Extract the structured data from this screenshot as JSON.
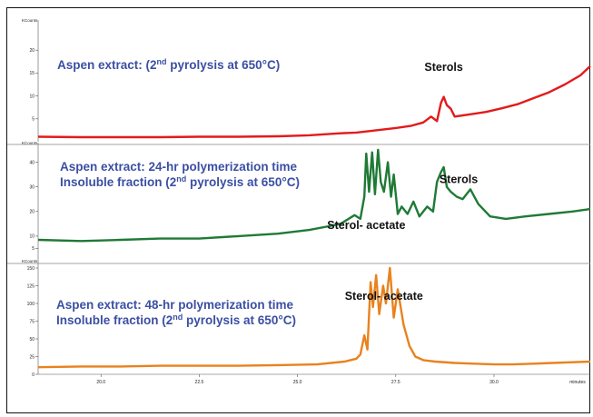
{
  "chart_data": [
    {
      "type": "line",
      "unit_label": "KCounts",
      "title_lines": [
        "Aspen extract: (2nd pyrolysis at 650°C)"
      ],
      "annotations": [
        {
          "text": "Sterols",
          "x": 28.72,
          "y": 15.5
        }
      ],
      "color": "#e31a1c",
      "ylim": [
        0,
        25
      ],
      "yticks": [
        5,
        10,
        15,
        20
      ],
      "x": [
        18.4,
        19.5,
        20.5,
        21.5,
        22.5,
        23.5,
        24.5,
        25.3,
        26.0,
        26.5,
        27.0,
        27.5,
        27.9,
        28.2,
        28.4,
        28.55,
        28.65,
        28.72,
        28.8,
        28.9,
        29.0,
        29.4,
        29.8,
        30.2,
        30.6,
        31.0,
        31.4,
        31.8,
        32.2,
        32.45
      ],
      "y": [
        1.1,
        1.0,
        1.0,
        1.0,
        1.1,
        1.1,
        1.2,
        1.4,
        1.8,
        2.0,
        2.5,
        3.0,
        3.5,
        4.2,
        5.5,
        4.5,
        8.5,
        9.8,
        8.0,
        7.2,
        5.5,
        6.0,
        6.5,
        7.3,
        8.2,
        9.5,
        10.8,
        12.5,
        14.5,
        16.5
      ]
    },
    {
      "type": "line",
      "unit_label": "KCounts",
      "title_lines": [
        "Aspen extract: 24-hr polymerization time",
        "Insoluble fraction (2nd pyrolysis at 650°C)"
      ],
      "annotations": [
        {
          "text": "Sterol- acetate",
          "x": 26.75,
          "y": 13
        },
        {
          "text": "Sterols",
          "x": 29.1,
          "y": 31.5
        }
      ],
      "color": "#1f7a35",
      "ylim": [
        0,
        45
      ],
      "yticks": [
        5,
        10,
        20,
        30,
        40
      ],
      "x": [
        18.4,
        19.5,
        20.5,
        21.5,
        22.5,
        23.5,
        24.5,
        25.3,
        25.8,
        26.1,
        26.3,
        26.45,
        26.6,
        26.7,
        26.75,
        26.82,
        26.9,
        26.97,
        27.05,
        27.12,
        27.2,
        27.3,
        27.38,
        27.45,
        27.55,
        27.65,
        27.8,
        27.95,
        28.1,
        28.3,
        28.45,
        28.55,
        28.65,
        28.72,
        28.8,
        28.9,
        29.05,
        29.2,
        29.4,
        29.6,
        29.9,
        30.3,
        30.8,
        31.4,
        32.0,
        32.45
      ],
      "y": [
        8.5,
        8.0,
        8.5,
        9.0,
        9.0,
        10.0,
        11.0,
        12.5,
        14.0,
        15.0,
        17.0,
        18.5,
        17.0,
        26.0,
        43.5,
        28.0,
        44.0,
        27.0,
        45.0,
        32.0,
        28.0,
        40.0,
        26.0,
        35.0,
        19.0,
        22.0,
        19.0,
        24.0,
        18.0,
        22.0,
        20.0,
        32.0,
        36.0,
        38.0,
        30.0,
        28.0,
        26.0,
        25.0,
        29.0,
        23.0,
        18.0,
        17.0,
        18.0,
        19.0,
        20.0,
        21.0
      ]
    },
    {
      "type": "line",
      "unit_label": "KCounts",
      "title_lines": [
        "Aspen extract: 48-hr polymerization time",
        "Insoluble fraction (2nd pyrolysis at 650°C)"
      ],
      "annotations": [
        {
          "text": "Sterol- acetate",
          "x": 27.2,
          "y": 105
        }
      ],
      "color": "#e8821e",
      "ylim": [
        0,
        150
      ],
      "yticks": [
        0,
        25,
        50,
        75,
        100,
        125,
        150
      ],
      "xticks": [
        20,
        22.5,
        25,
        27.5,
        30
      ],
      "xtick_labels": [
        "20.0",
        "22.5",
        "25.0",
        "27.5",
        "30.0"
      ],
      "x_unit_label": "minutes",
      "x": [
        18.4,
        19.5,
        20.5,
        21.5,
        22.5,
        23.5,
        24.5,
        25.5,
        26.2,
        26.5,
        26.6,
        26.7,
        26.78,
        26.86,
        26.92,
        27.0,
        27.08,
        27.18,
        27.25,
        27.35,
        27.45,
        27.55,
        27.7,
        27.85,
        28.0,
        28.2,
        28.5,
        29.0,
        29.5,
        30.0,
        30.5,
        31.0,
        31.5,
        32.0,
        32.45
      ],
      "y": [
        10,
        11,
        11,
        12,
        12,
        12,
        13,
        14,
        18,
        22,
        28,
        55,
        35,
        130,
        95,
        140,
        85,
        125,
        100,
        150,
        80,
        120,
        70,
        40,
        25,
        20,
        18,
        16,
        15,
        14,
        14,
        15,
        16,
        17,
        18
      ]
    }
  ]
}
